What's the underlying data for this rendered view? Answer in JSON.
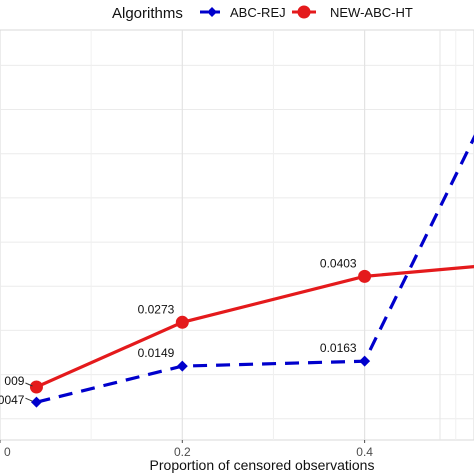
{
  "chart_data": {
    "type": "line",
    "xlabel": "Proportion of censored observations",
    "ylabel": "",
    "title": "",
    "legend": {
      "title": "Algorithms",
      "position": "top",
      "entries": [
        "ABC-REJ",
        "NEW-ABC-HT"
      ]
    },
    "x_ticks": [
      {
        "value": 0.0,
        "label": "0"
      },
      {
        "value": 0.2,
        "label": "0.2"
      },
      {
        "value": 0.4,
        "label": "0.4"
      }
    ],
    "xlim": [
      0.0,
      0.52
    ],
    "ylim": [
      -0.006,
      0.11
    ],
    "y_gridlines": [
      0.0,
      0.0125,
      0.025,
      0.0375,
      0.05,
      0.0625,
      0.075,
      0.0875,
      0.1
    ],
    "grid": true,
    "series": [
      {
        "name": "ABC-REJ",
        "color": "#0000CC",
        "line_style": "dashed",
        "marker": "diamond",
        "x": [
          0.04,
          0.2,
          0.4,
          0.54
        ],
        "y": [
          0.0047,
          0.0149,
          0.0163,
          0.09
        ],
        "labels": [
          "0047",
          "0.0149",
          "0.0163",
          ""
        ]
      },
      {
        "name": "NEW-ABC-HT",
        "color": "#E41A1C",
        "line_style": "solid",
        "marker": "circle",
        "x": [
          0.04,
          0.2,
          0.4,
          0.54
        ],
        "y": [
          0.009,
          0.0273,
          0.0403,
          0.0435
        ],
        "labels": [
          "009",
          "0.0273",
          "0.0403",
          ""
        ]
      }
    ]
  }
}
